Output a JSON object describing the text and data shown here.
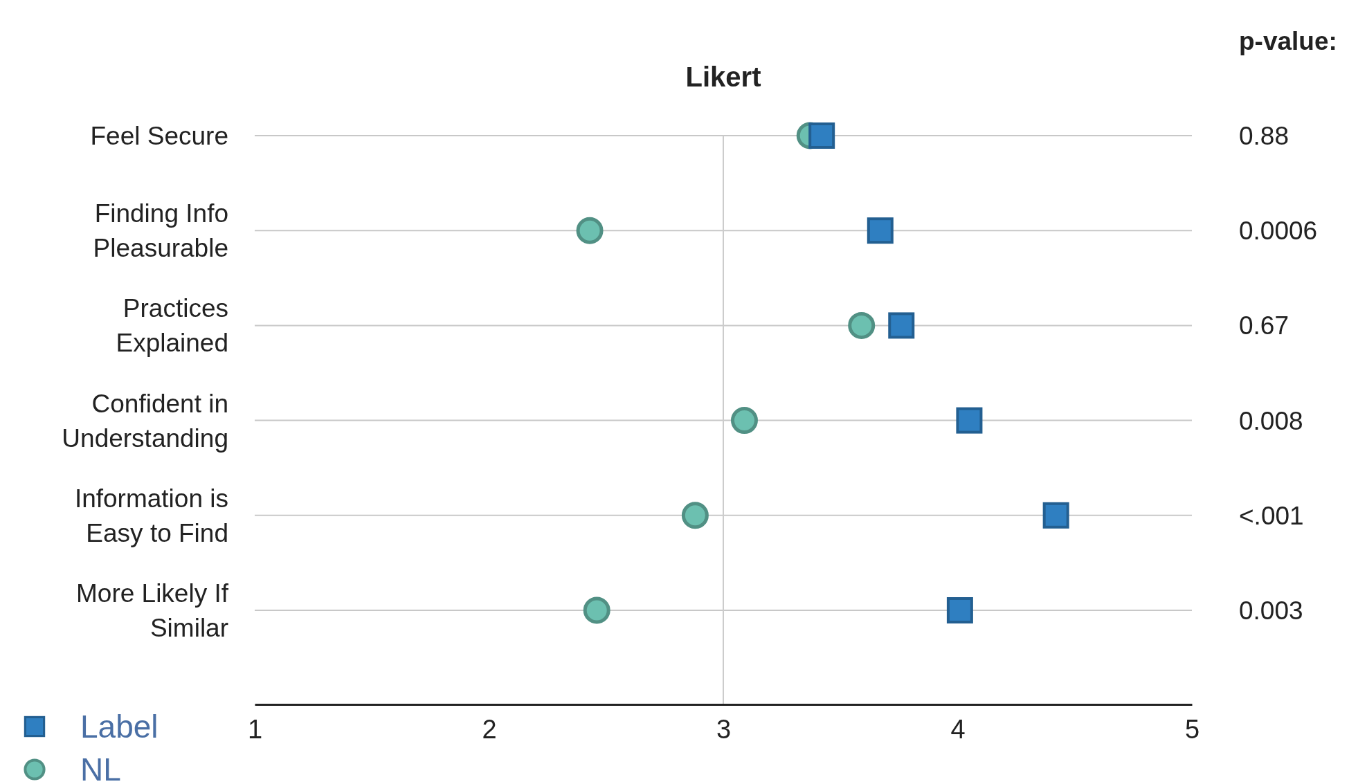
{
  "chart_data": {
    "type": "scatter",
    "title": "Likert",
    "orientation": "horizontal",
    "categories": [
      "Feel Secure",
      "Finding Info Pleasurable",
      "Practices Explained",
      "Confident in Understanding",
      "Information is Easy to Find",
      "More Likely If Similar"
    ],
    "series": [
      {
        "name": "Label",
        "color": "#2f7fc1",
        "marker": "square",
        "values": [
          3.42,
          3.67,
          3.76,
          4.05,
          4.42,
          4.01
        ]
      },
      {
        "name": "NL",
        "color": "#6cc0b0",
        "marker": "circle",
        "values": [
          3.37,
          2.43,
          3.59,
          3.09,
          2.88,
          2.46
        ]
      }
    ],
    "xlim": [
      1,
      5
    ],
    "xticks": [
      1,
      2,
      3,
      4,
      5
    ],
    "grid": "y",
    "legend": "bottom left",
    "ref_lines": [
      {
        "axis": "x",
        "value": 3,
        "color": "#cccccc"
      }
    ],
    "annotations": [
      "p-value:",
      "0.88",
      "0.0006",
      "0.67",
      "0.008",
      "<.001",
      "0.003"
    ]
  }
}
